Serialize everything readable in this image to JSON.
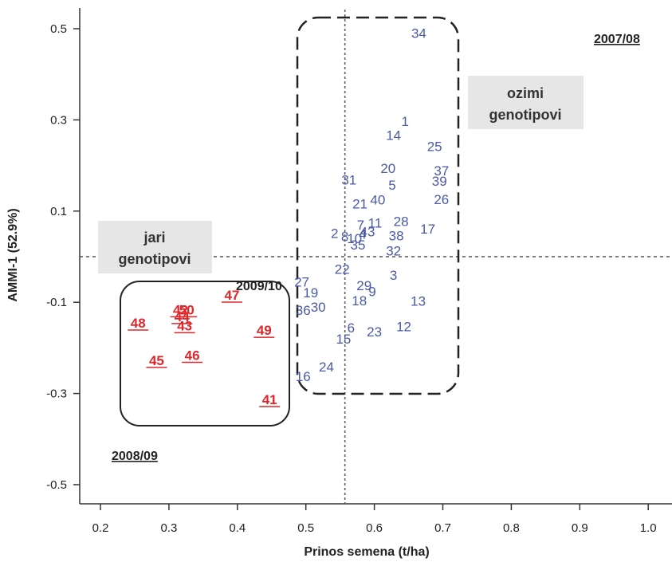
{
  "chart_data": {
    "type": "scatter",
    "title": "",
    "xlabel": "Prinos semena (t/ha)",
    "ylabel": "AMMI-1 (52.9%)",
    "xlim": [
      0.16,
      1.03
    ],
    "ylim": [
      -0.56,
      0.56
    ],
    "x_ticks": [
      "0.2",
      "0.3",
      "0.4",
      "0.5",
      "0.6",
      "0.7",
      "0.8",
      "0.9",
      "1.0"
    ],
    "y_ticks": [
      "0.5",
      "0.3",
      "0.1",
      "-0.1",
      "-0.3",
      "-0.5"
    ],
    "x_tick_values": [
      0.2,
      0.3,
      0.4,
      0.5,
      0.6,
      0.7,
      0.8,
      0.9,
      1.0
    ],
    "y_tick_values": [
      0.5,
      0.3,
      0.1,
      -0.1,
      -0.3,
      -0.5
    ],
    "ref_lines": {
      "x": 0.557,
      "y": 0.0
    },
    "seasons": [
      "2007/08",
      "2008/09",
      "2009/10"
    ],
    "group_labels": [
      {
        "lines": [
          "ozimi",
          "genotipovi"
        ]
      },
      {
        "lines": [
          "jari",
          "genotipovi"
        ]
      }
    ],
    "series": [
      {
        "color": "#4a5aa8",
        "points": [
          {
            "label": "34",
            "x": 0.665,
            "y": 0.49
          },
          {
            "label": "1",
            "x": 0.645,
            "y": 0.297
          },
          {
            "label": "14",
            "x": 0.628,
            "y": 0.267
          },
          {
            "label": "25",
            "x": 0.688,
            "y": 0.242
          },
          {
            "label": "20",
            "x": 0.62,
            "y": 0.194
          },
          {
            "label": "37",
            "x": 0.698,
            "y": 0.189
          },
          {
            "label": "31",
            "x": 0.563,
            "y": 0.169
          },
          {
            "label": "5",
            "x": 0.626,
            "y": 0.157
          },
          {
            "label": "39",
            "x": 0.695,
            "y": 0.166
          },
          {
            "label": "21",
            "x": 0.579,
            "y": 0.116
          },
          {
            "label": "40",
            "x": 0.605,
            "y": 0.125
          },
          {
            "label": "26",
            "x": 0.698,
            "y": 0.126
          },
          {
            "label": "7",
            "x": 0.58,
            "y": 0.07
          },
          {
            "label": "11",
            "x": 0.601,
            "y": 0.074
          },
          {
            "label": "28",
            "x": 0.639,
            "y": 0.078
          },
          {
            "label": "17",
            "x": 0.678,
            "y": 0.061
          },
          {
            "label": "2",
            "x": 0.542,
            "y": 0.052
          },
          {
            "label": "8",
            "x": 0.557,
            "y": 0.045
          },
          {
            "label": "10",
            "x": 0.571,
            "y": 0.04
          },
          {
            "label": "4",
            "x": 0.583,
            "y": 0.05
          },
          {
            "label": "43",
            "x": 0.59,
            "y": 0.055
          },
          {
            "label": "38",
            "x": 0.632,
            "y": 0.046
          },
          {
            "label": "35",
            "x": 0.576,
            "y": 0.026
          },
          {
            "label": "32",
            "x": 0.628,
            "y": 0.013
          },
          {
            "label": "22",
            "x": 0.553,
            "y": -0.027
          },
          {
            "label": "3",
            "x": 0.628,
            "y": -0.04
          },
          {
            "label": "27",
            "x": 0.494,
            "y": -0.055
          },
          {
            "label": "29",
            "x": 0.585,
            "y": -0.063
          },
          {
            "label": "9",
            "x": 0.597,
            "y": -0.076
          },
          {
            "label": "19",
            "x": 0.507,
            "y": -0.079
          },
          {
            "label": "18",
            "x": 0.578,
            "y": -0.096
          },
          {
            "label": "13",
            "x": 0.664,
            "y": -0.097
          },
          {
            "label": "36",
            "x": 0.496,
            "y": -0.117
          },
          {
            "label": "30",
            "x": 0.518,
            "y": -0.11
          },
          {
            "label": "6",
            "x": 0.566,
            "y": -0.156
          },
          {
            "label": "12",
            "x": 0.643,
            "y": -0.153
          },
          {
            "label": "23",
            "x": 0.6,
            "y": -0.164
          },
          {
            "label": "15",
            "x": 0.555,
            "y": -0.18
          },
          {
            "label": "24",
            "x": 0.53,
            "y": -0.241
          },
          {
            "label": "16",
            "x": 0.496,
            "y": -0.262
          }
        ]
      },
      {
        "color": "#e0262a",
        "points": [
          {
            "label": "48",
            "x": 0.255,
            "y": -0.145
          },
          {
            "label": "42",
            "x": 0.317,
            "y": -0.116
          },
          {
            "label": "50",
            "x": 0.326,
            "y": -0.116
          },
          {
            "label": "44",
            "x": 0.319,
            "y": -0.131
          },
          {
            "label": "43",
            "x": 0.323,
            "y": -0.151
          },
          {
            "label": "47",
            "x": 0.392,
            "y": -0.084
          },
          {
            "label": "49",
            "x": 0.439,
            "y": -0.161
          },
          {
            "label": "46",
            "x": 0.334,
            "y": -0.216
          },
          {
            "label": "45",
            "x": 0.282,
            "y": -0.227
          },
          {
            "label": "41",
            "x": 0.447,
            "y": -0.313
          }
        ]
      }
    ]
  }
}
